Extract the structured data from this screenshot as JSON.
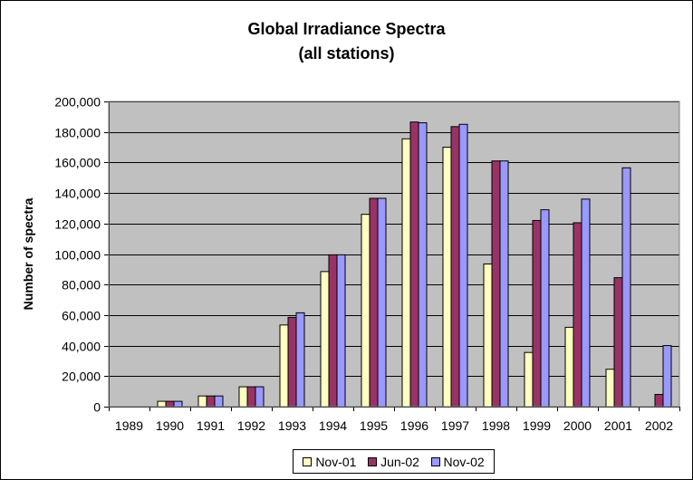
{
  "chart_data": {
    "type": "bar",
    "title": "Global Irradiance Spectra",
    "subtitle": "(all stations)",
    "xlabel": "",
    "ylabel": "Number of spectra",
    "ylim": [
      0,
      200000
    ],
    "yticks": [
      0,
      20000,
      40000,
      60000,
      80000,
      100000,
      120000,
      140000,
      160000,
      180000,
      200000
    ],
    "ytick_labels": [
      "0",
      "20,000",
      "40,000",
      "60,000",
      "80,000",
      "100,000",
      "120,000",
      "140,000",
      "160,000",
      "180,000",
      "200,000"
    ],
    "grid": "horizontal",
    "legend_position": "bottom",
    "categories": [
      "1989",
      "1990",
      "1991",
      "1992",
      "1993",
      "1994",
      "1995",
      "1996",
      "1997",
      "1998",
      "1999",
      "2000",
      "2001",
      "2002"
    ],
    "series": [
      {
        "name": "Nov-01",
        "color": "#FFFFC0",
        "values": [
          0,
          3500,
          7000,
          13000,
          53500,
          88500,
          126000,
          175500,
          170000,
          93500,
          35500,
          52000,
          24500,
          0
        ]
      },
      {
        "name": "Jun-02",
        "color": "#993366",
        "values": [
          0,
          3500,
          7000,
          13000,
          58500,
          99500,
          136500,
          186500,
          183500,
          161000,
          122000,
          120500,
          84500,
          8000
        ]
      },
      {
        "name": "Nov-02",
        "color": "#9999FF",
        "values": [
          0,
          3500,
          7000,
          13000,
          61500,
          99500,
          136500,
          186000,
          185000,
          161000,
          129000,
          136000,
          156500,
          40000
        ]
      }
    ]
  },
  "colors": {
    "plot_background": "#C0C0C0",
    "gridline": "#000000"
  }
}
